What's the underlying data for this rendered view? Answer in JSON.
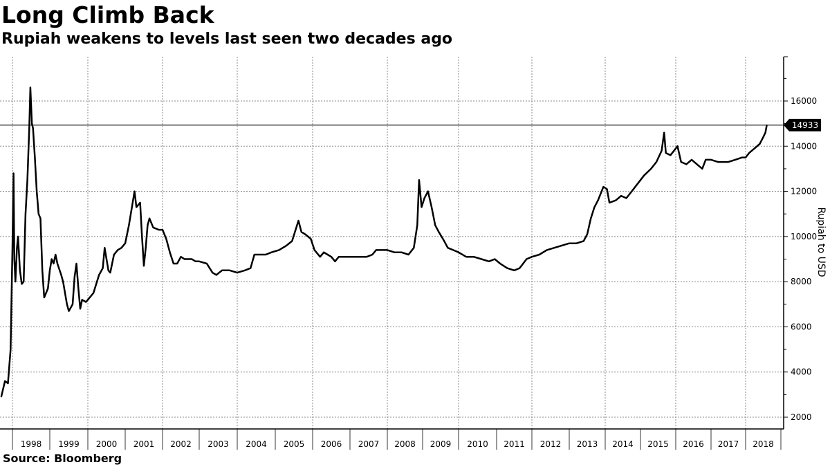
{
  "chart_data": {
    "type": "line",
    "title": "Long Climb Back",
    "subtitle": "Rupiah weakens to levels last seen two decades ago",
    "ylabel": "Rupiah to USD",
    "xlabel": "",
    "source": "Source: Bloomberg",
    "ylim": [
      1500,
      18000
    ],
    "yticks": [
      2000,
      4000,
      6000,
      8000,
      10000,
      12000,
      14000,
      16000
    ],
    "xticks": [
      "1998",
      "1999",
      "2000",
      "2001",
      "2002",
      "2003",
      "2004",
      "2005",
      "2006",
      "2007",
      "2008",
      "2009",
      "2010",
      "2011",
      "2012",
      "2013",
      "2014",
      "2015",
      "2016",
      "2017",
      "2018"
    ],
    "grid": true,
    "line_color": "#000000",
    "last_value": 14933,
    "last_value_label": "14933",
    "series": [
      {
        "x": [
          1997.7,
          1997.8,
          1997.88,
          1997.95,
          1998.0,
          1998.03,
          1998.05,
          1998.08,
          1998.12,
          1998.15,
          1998.2,
          1998.25,
          1998.3,
          1998.35,
          1998.4,
          1998.45,
          1998.48,
          1998.52,
          1998.55,
          1998.6,
          1998.65,
          1998.7,
          1998.75,
          1998.8,
          1998.85,
          1998.9,
          1998.95,
          1999.0,
          1999.05,
          1999.1,
          1999.15,
          1999.2,
          1999.3,
          1999.35,
          1999.45,
          1999.5,
          1999.6,
          1999.65,
          1999.7,
          1999.75,
          1999.8,
          1999.85,
          1999.95,
          2000.0,
          2000.15,
          2000.3,
          2000.4,
          2000.45,
          2000.55,
          2000.6,
          2000.7,
          2000.8,
          2000.9,
          2001.0,
          2001.1,
          2001.2,
          2001.25,
          2001.3,
          2001.4,
          2001.45,
          2001.5,
          2001.55,
          2001.6,
          2001.65,
          2001.75,
          2001.9,
          2002.0,
          2002.1,
          2002.2,
          2002.3,
          2002.4,
          2002.5,
          2002.6,
          2002.7,
          2002.8,
          2002.9,
          2003.0,
          2003.2,
          2003.35,
          2003.45,
          2003.6,
          2003.8,
          2004.0,
          2004.2,
          2004.35,
          2004.45,
          2004.6,
          2004.75,
          2004.9,
          2005.1,
          2005.3,
          2005.45,
          2005.62,
          2005.7,
          2005.8,
          2005.95,
          2006.05,
          2006.2,
          2006.3,
          2006.4,
          2006.5,
          2006.6,
          2006.7,
          2006.9,
          2007.1,
          2007.3,
          2007.45,
          2007.6,
          2007.7,
          2007.9,
          2008.0,
          2008.2,
          2008.4,
          2008.6,
          2008.75,
          2008.85,
          2008.9,
          2008.97,
          2009.05,
          2009.15,
          2009.25,
          2009.35,
          2009.45,
          2009.6,
          2009.7,
          2009.85,
          2010.0,
          2010.2,
          2010.4,
          2010.6,
          2010.8,
          2010.95,
          2011.1,
          2011.3,
          2011.5,
          2011.65,
          2011.75,
          2011.85,
          2012.0,
          2012.2,
          2012.4,
          2012.6,
          2012.8,
          2013.0,
          2013.2,
          2013.4,
          2013.5,
          2013.6,
          2013.7,
          2013.8,
          2013.95,
          2014.05,
          2014.12,
          2014.3,
          2014.45,
          2014.6,
          2014.75,
          2014.9,
          2015.1,
          2015.3,
          2015.45,
          2015.6,
          2015.67,
          2015.72,
          2015.85,
          2015.95,
          2016.05,
          2016.15,
          2016.3,
          2016.45,
          2016.6,
          2016.75,
          2016.85,
          2017.0,
          2017.2,
          2017.5,
          2017.7,
          2017.9,
          2018.0,
          2018.1,
          2018.25,
          2018.4,
          2018.5,
          2018.56,
          2018.6
        ],
        "y": [
          2900,
          3600,
          3500,
          5000,
          9500,
          12800,
          9000,
          8000,
          9500,
          10000,
          8500,
          7900,
          8000,
          11000,
          12500,
          14800,
          16600,
          15000,
          14800,
          13500,
          12000,
          11000,
          10800,
          8500,
          7300,
          7500,
          7700,
          8500,
          9000,
          8800,
          9200,
          8800,
          8300,
          8000,
          7000,
          6700,
          7000,
          8200,
          8800,
          7700,
          6800,
          7200,
          7100,
          7200,
          7500,
          8300,
          8600,
          9500,
          8500,
          8400,
          9200,
          9400,
          9500,
          9700,
          10500,
          11500,
          12000,
          11300,
          11500,
          10000,
          8700,
          9500,
          10500,
          10800,
          10400,
          10300,
          10300,
          9900,
          9300,
          8800,
          8800,
          9100,
          9000,
          9000,
          9000,
          8900,
          8900,
          8800,
          8400,
          8300,
          8500,
          8500,
          8400,
          8500,
          8600,
          9200,
          9200,
          9200,
          9300,
          9400,
          9600,
          9800,
          10700,
          10200,
          10100,
          9900,
          9400,
          9100,
          9300,
          9200,
          9100,
          8900,
          9100,
          9100,
          9100,
          9100,
          9100,
          9200,
          9400,
          9400,
          9400,
          9300,
          9300,
          9200,
          9500,
          10500,
          12500,
          11300,
          11700,
          12000,
          11300,
          10500,
          10200,
          9800,
          9500,
          9400,
          9300,
          9100,
          9100,
          9000,
          8900,
          9000,
          8800,
          8600,
          8500,
          8600,
          8800,
          9000,
          9100,
          9200,
          9400,
          9500,
          9600,
          9700,
          9700,
          9800,
          10100,
          10800,
          11300,
          11600,
          12200,
          12100,
          11500,
          11600,
          11800,
          11700,
          12000,
          12300,
          12700,
          13000,
          13300,
          13800,
          14600,
          13700,
          13600,
          13800,
          14000,
          13300,
          13200,
          13400,
          13200,
          13000,
          13400,
          13400,
          13300,
          13300,
          13400,
          13500,
          13500,
          13700,
          13900,
          14100,
          14400,
          14600,
          14933
        ]
      }
    ]
  }
}
